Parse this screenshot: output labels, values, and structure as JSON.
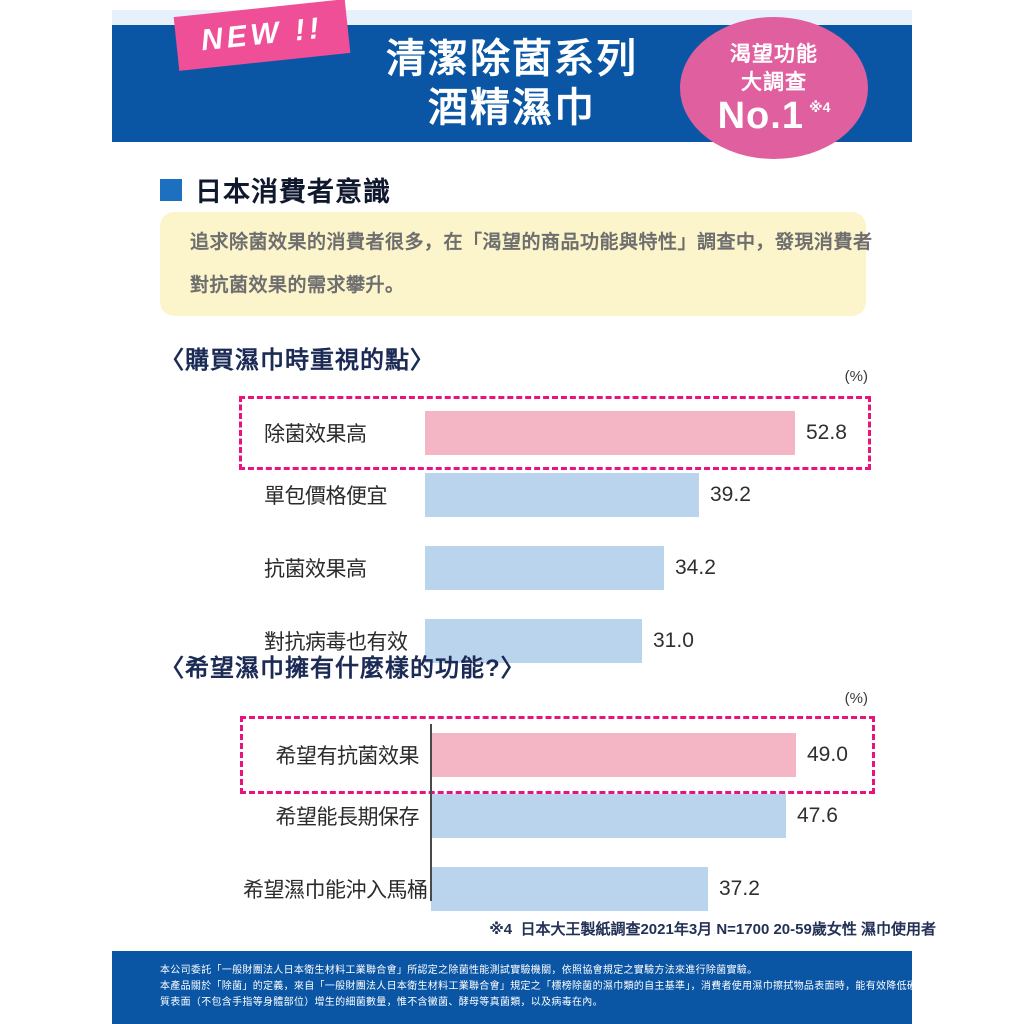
{
  "page": {
    "header": {
      "new_badge_label": "NEW !!",
      "title_line1": "清潔除菌系列",
      "title_line2": "酒精濕巾",
      "award_badge": {
        "line1": "渴望功能",
        "line2": "大調查",
        "rank": "No.1",
        "footnote_ref": "※4"
      }
    },
    "section": {
      "heading": "日本消費者意識",
      "intro_lines": [
        "追求除菌效果的消費者很多，在「渴望的商品功能與特性」調查中，發現消費者",
        "對抗菌效果的需求攀升。"
      ]
    },
    "footnote": "※4  日本大王製紙調查2021年3月 N=1700 20-59歲女性 濕巾使用者",
    "footer_lines": [
      "本公司委託「一般財團法人日本衛生材料工業聯合會」所認定之除菌性能測試實驗機關，依照協會規定之實驗方法來進行除菌實驗。",
      "本產品關於「除菌」的定義，來自「一般財團法人日本衛生材料工業聯合會」規定之「標榜除菌的濕巾類的自主基準」，消費者使用濕巾擦拭物品表面時，能有效降低硬",
      "質表面（不包含手指等身體部位）增生的細菌數量，惟不含黴菌、酵母等真菌類，以及病毒在內。"
    ]
  },
  "chart_data": [
    {
      "type": "bar",
      "orientation": "horizontal",
      "title": "〈購買濕巾時重視的點〉",
      "unit_label": "(%)",
      "categories": [
        "除菌效果高",
        "單包價格便宜",
        "抗菌效果高",
        "對抗病毒也有效"
      ],
      "values": [
        52.8,
        39.2,
        34.2,
        31.0
      ],
      "highlighted_index": 0,
      "xlim": [
        0,
        60
      ],
      "grid": false,
      "legend": "none"
    },
    {
      "type": "bar",
      "orientation": "horizontal",
      "title": "〈希望濕巾擁有什麼樣的功能?〉",
      "unit_label": "(%)",
      "categories": [
        "希望有抗菌效果",
        "希望能長期保存",
        "希望濕巾能沖入馬桶"
      ],
      "values": [
        49.0,
        47.6,
        37.2
      ],
      "highlighted_index": 0,
      "xlim": [
        0,
        55
      ],
      "grid": false,
      "legend": "none"
    }
  ],
  "colors": {
    "header_blue": "#0b56a4",
    "strip": "#e7f1fb",
    "badge_pink": "#ef4f97",
    "circle_pink": "#e05f9e",
    "bullet_blue": "#1d6fc0",
    "yellow": "#fcf5cc",
    "bar_pink": "#f4b5c5",
    "bar_blue": "#b9d4ec",
    "dashed": "#e91380",
    "navy": "#1c2b55",
    "gray_text": "#6e6e6e"
  }
}
